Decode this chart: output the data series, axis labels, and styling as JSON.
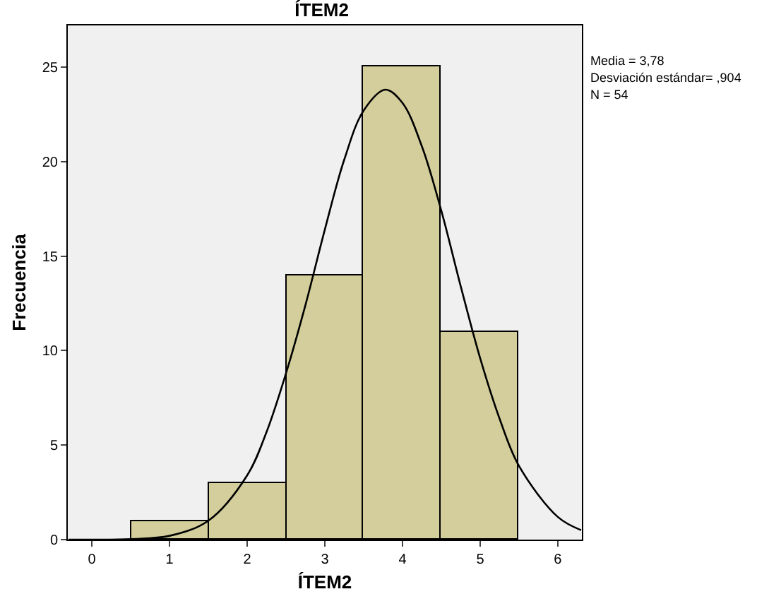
{
  "chart_data": {
    "type": "histogram",
    "title": "ÍTEM2",
    "xlabel": "ÍTEM2",
    "ylabel": "Frecuencia",
    "bins": [
      0.5,
      1.5,
      2.5,
      3.5,
      4.5,
      5.5
    ],
    "values": [
      1,
      3,
      14,
      25,
      11
    ],
    "color": "#d3ce9b",
    "series": [
      {
        "type": "line",
        "color": "#000000",
        "x": [
          -0.3,
          0,
          0.5,
          1,
          1.5,
          2,
          2.25,
          2.5,
          2.75,
          3,
          3.25,
          3.5,
          3.78,
          4,
          4.25,
          4.5,
          4.75,
          5,
          5.25,
          5.5,
          6,
          6.3
        ],
        "values": [
          0,
          0,
          0.03,
          0.2,
          1.0,
          3.4,
          5.7,
          8.8,
          12.4,
          16.4,
          20.1,
          22.7,
          23.8,
          23.1,
          20.8,
          17.4,
          13.4,
          9.6,
          6.4,
          3.9,
          1.2,
          0.5
        ]
      }
    ],
    "marker": "none",
    "line_style": "solid",
    "xlim": [
      -0.31,
      6.31
    ],
    "xticks": [
      0,
      1,
      2,
      3,
      4,
      5,
      6
    ],
    "ylim": [
      0,
      27.2
    ],
    "yticks": [
      0,
      5,
      10,
      15,
      20,
      25
    ],
    "annotations": [
      "Media = 3,78",
      "Desviación estándar= ,904",
      "N = 54"
    ]
  }
}
